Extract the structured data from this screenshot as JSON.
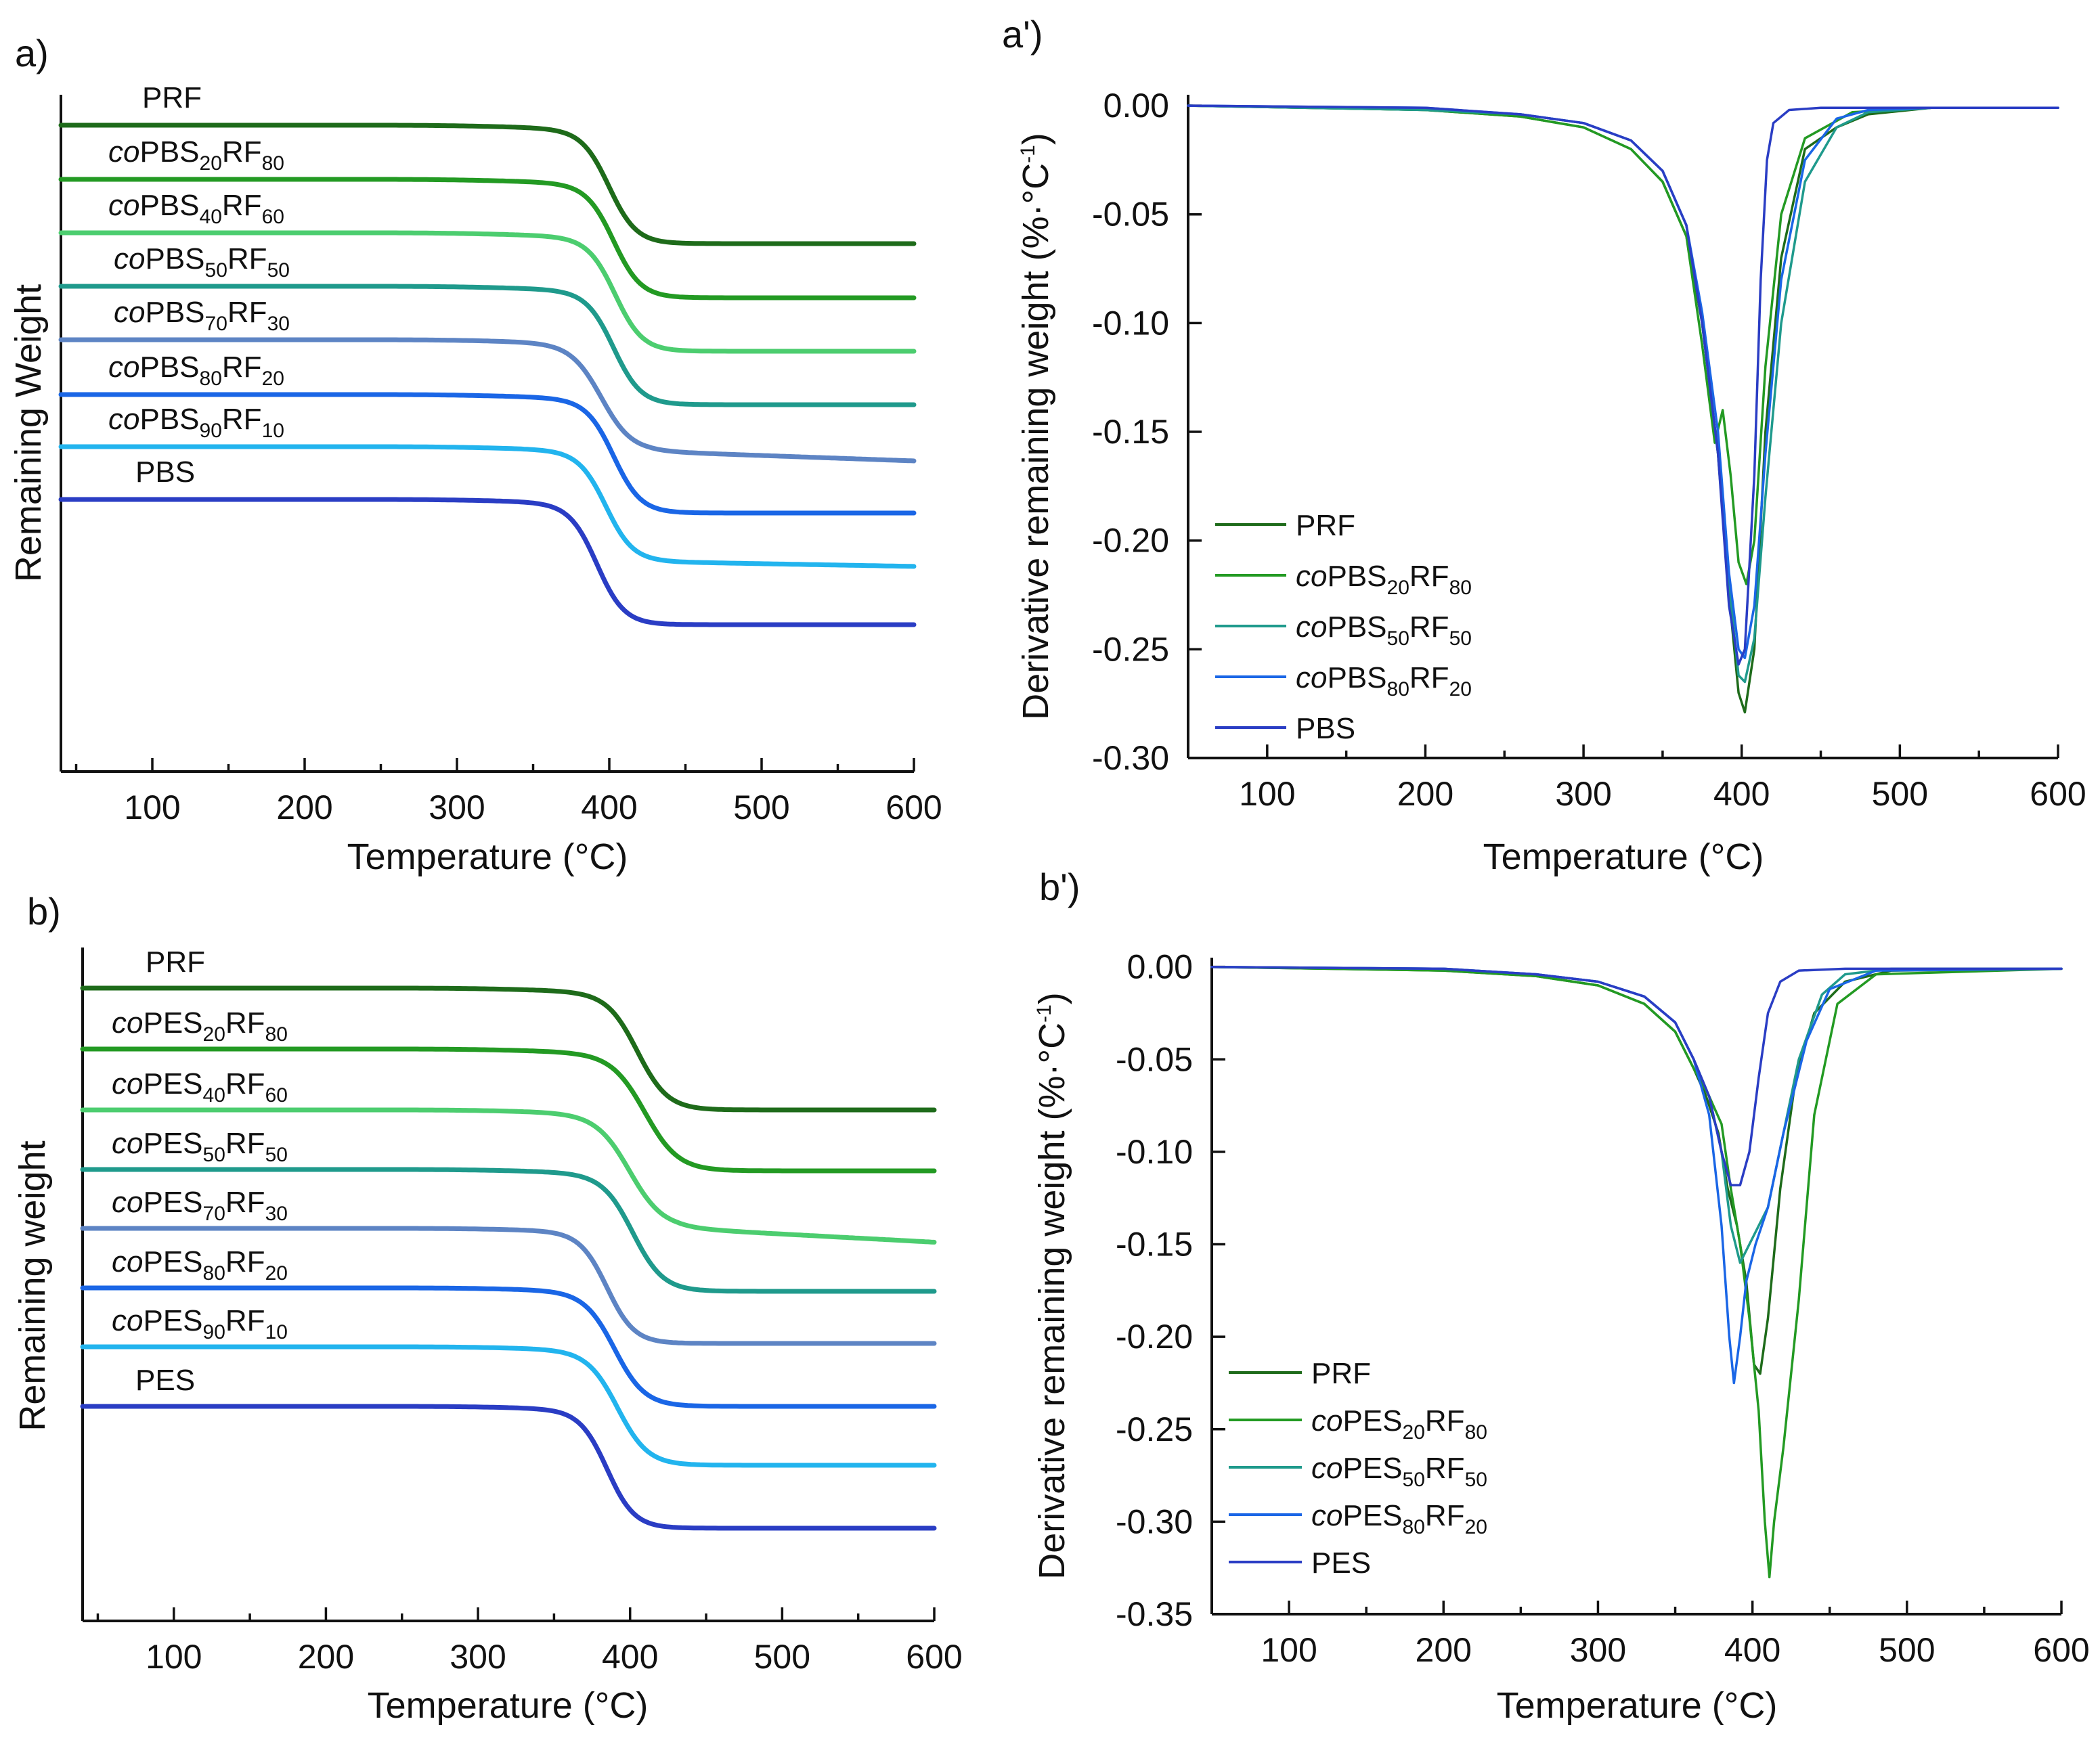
{
  "colors": {
    "PRF": "#1e6b1a",
    "s20": "#239a23",
    "s40": "#4ccd6f",
    "s50": "#1f9a8c",
    "s70": "#5d84c4",
    "s80": "#1a66e6",
    "s90": "#22b4ee",
    "PURE": "#2a3dc4"
  },
  "chart_data": [
    {
      "id": "a",
      "panel_label": "a)",
      "type": "line",
      "title": "",
      "xlabel": "Temperature (°C)",
      "ylabel": "Remaining Weight",
      "xlim": [
        40,
        600
      ],
      "xticks": [
        100,
        200,
        300,
        400,
        500,
        600
      ],
      "yticks_visible": false,
      "series": [
        {
          "key": "PRF",
          "parts": [
            "PRF"
          ],
          "onset": 400,
          "width": 9,
          "drop": 175,
          "plateau": 8,
          "slope": 0
        },
        {
          "key": "s20",
          "parts": [
            "co",
            "PBS",
            "20",
            "RF",
            "80"
          ],
          "onset": 403,
          "width": 9,
          "drop": 175,
          "plateau": 8,
          "slope": 0
        },
        {
          "key": "s40",
          "parts": [
            "co",
            "PBS",
            "40",
            "RF",
            "60"
          ],
          "onset": 404,
          "width": 9,
          "drop": 175,
          "plateau": 8,
          "slope": 0
        },
        {
          "key": "s50",
          "parts": [
            "co",
            "PBS",
            "50",
            "RF",
            "50"
          ],
          "onset": 403,
          "width": 9,
          "drop": 175,
          "plateau": 8,
          "slope": 0
        },
        {
          "key": "s70",
          "parts": [
            "co",
            "PBS",
            "70",
            "RF",
            "30"
          ],
          "onset": 395,
          "width": 10,
          "drop": 165,
          "plateau": 8,
          "slope": 0.08
        },
        {
          "key": "s80",
          "parts": [
            "co",
            "PBS",
            "80",
            "RF",
            "20"
          ],
          "onset": 403,
          "width": 9,
          "drop": 175,
          "plateau": 8,
          "slope": 0
        },
        {
          "key": "s90",
          "parts": [
            "co",
            "PBS",
            "90",
            "RF",
            "10"
          ],
          "onset": 398,
          "width": 9,
          "drop": 170,
          "plateau": 8,
          "slope": 0.04
        },
        {
          "key": "PURE",
          "parts": [
            "PBS"
          ],
          "onset": 392,
          "width": 9,
          "drop": 185,
          "plateau": 8,
          "slope": 0
        }
      ]
    },
    {
      "id": "a2",
      "panel_label": "a')",
      "type": "line",
      "title": "",
      "xlabel": "Temperature (°C)",
      "ylabel": "Derivative remaining weight (%·°C",
      "ylabel_sup": "-1",
      "ylabel_close": ")",
      "xlim": [
        50,
        600
      ],
      "ylim": [
        -0.3,
        0.005
      ],
      "xticks": [
        100,
        200,
        300,
        400,
        500,
        600
      ],
      "yticks": [
        0.0,
        -0.05,
        -0.1,
        -0.15,
        -0.2,
        -0.25,
        -0.3
      ],
      "ytick_labels": [
        "0.00",
        "-0.05",
        "-0.10",
        "-0.15",
        "-0.20",
        "-0.25",
        "-0.30"
      ],
      "legend_position": "lower-left",
      "legend": [
        {
          "key": "PRF",
          "parts": [
            "PRF"
          ],
          "text_color": "#34e034"
        },
        {
          "key": "s20",
          "parts": [
            "co",
            "PBS",
            "20",
            "RF",
            "80"
          ]
        },
        {
          "key": "s50",
          "parts": [
            "co",
            "PBS",
            "50",
            "RF",
            "50"
          ]
        },
        {
          "key": "s80",
          "parts": [
            "co",
            "PBS",
            "80",
            "RF",
            "20"
          ]
        },
        {
          "key": "PURE",
          "parts": [
            "PBS"
          ]
        }
      ],
      "series": [
        {
          "key": "PRF",
          "x": [
            50,
            200,
            260,
            300,
            330,
            350,
            365,
            375,
            385,
            392,
            398,
            402,
            408,
            415,
            425,
            440,
            460,
            480,
            520,
            600
          ],
          "y": [
            0.0,
            -0.002,
            -0.005,
            -0.01,
            -0.02,
            -0.035,
            -0.06,
            -0.1,
            -0.16,
            -0.225,
            -0.27,
            -0.279,
            -0.25,
            -0.15,
            -0.07,
            -0.02,
            -0.01,
            -0.004,
            -0.001,
            -0.001
          ]
        },
        {
          "key": "s20",
          "x": [
            50,
            200,
            260,
            300,
            330,
            350,
            365,
            375,
            383,
            388,
            393,
            398,
            403,
            408,
            415,
            425,
            440,
            470,
            520,
            600
          ],
          "y": [
            0.0,
            -0.002,
            -0.005,
            -0.01,
            -0.02,
            -0.035,
            -0.06,
            -0.11,
            -0.155,
            -0.14,
            -0.17,
            -0.21,
            -0.22,
            -0.2,
            -0.12,
            -0.05,
            -0.015,
            -0.003,
            -0.001,
            -0.001
          ]
        },
        {
          "key": "s50",
          "x": [
            50,
            200,
            260,
            300,
            330,
            350,
            365,
            375,
            385,
            392,
            398,
            402,
            408,
            415,
            425,
            440,
            460,
            480,
            520,
            600
          ],
          "y": [
            0.0,
            -0.002,
            -0.004,
            -0.008,
            -0.016,
            -0.03,
            -0.055,
            -0.1,
            -0.16,
            -0.22,
            -0.262,
            -0.265,
            -0.245,
            -0.18,
            -0.1,
            -0.035,
            -0.01,
            -0.003,
            -0.001,
            -0.001
          ]
        },
        {
          "key": "s80",
          "x": [
            50,
            200,
            260,
            300,
            330,
            350,
            365,
            375,
            385,
            392,
            398,
            402,
            408,
            415,
            425,
            440,
            460,
            480,
            520,
            600
          ],
          "y": [
            0.0,
            -0.001,
            -0.004,
            -0.008,
            -0.016,
            -0.03,
            -0.055,
            -0.095,
            -0.15,
            -0.215,
            -0.25,
            -0.254,
            -0.23,
            -0.16,
            -0.08,
            -0.025,
            -0.006,
            -0.002,
            -0.001,
            -0.001
          ]
        },
        {
          "key": "PURE",
          "x": [
            50,
            200,
            260,
            300,
            330,
            350,
            365,
            375,
            385,
            392,
            398,
            402,
            408,
            412,
            416,
            420,
            430,
            450,
            500,
            600
          ],
          "y": [
            0.0,
            -0.001,
            -0.004,
            -0.008,
            -0.016,
            -0.03,
            -0.055,
            -0.1,
            -0.16,
            -0.23,
            -0.257,
            -0.25,
            -0.17,
            -0.08,
            -0.025,
            -0.008,
            -0.002,
            -0.001,
            -0.001,
            -0.001
          ]
        }
      ]
    },
    {
      "id": "b",
      "panel_label": "b)",
      "type": "line",
      "title": "",
      "xlabel": "Temperature (°C)",
      "ylabel": "Remaining weight",
      "xlim": [
        40,
        600
      ],
      "xticks": [
        100,
        200,
        300,
        400,
        500,
        600
      ],
      "yticks_visible": false,
      "series": [
        {
          "key": "PRF",
          "parts": [
            "PRF"
          ],
          "onset": 405,
          "width": 10,
          "drop": 180,
          "plateau": 8,
          "slope": 0
        },
        {
          "key": "s20",
          "parts": [
            "co",
            "PES",
            "20",
            "RF",
            "80"
          ],
          "onset": 410,
          "width": 11,
          "drop": 180,
          "plateau": 8,
          "slope": 0
        },
        {
          "key": "s40",
          "parts": [
            "co",
            "PES",
            "40",
            "RF",
            "60"
          ],
          "onset": 400,
          "width": 11,
          "drop": 175,
          "plateau": 8,
          "slope": 0.12
        },
        {
          "key": "s50",
          "parts": [
            "co",
            "PES",
            "50",
            "RF",
            "50"
          ],
          "onset": 402,
          "width": 10,
          "drop": 180,
          "plateau": 8,
          "slope": 0
        },
        {
          "key": "s70",
          "parts": [
            "co",
            "PES",
            "70",
            "RF",
            "30"
          ],
          "onset": 385,
          "width": 9,
          "drop": 170,
          "plateau": 8,
          "slope": 0
        },
        {
          "key": "s80",
          "parts": [
            "co",
            "PES",
            "80",
            "RF",
            "20"
          ],
          "onset": 390,
          "width": 10,
          "drop": 175,
          "plateau": 8,
          "slope": 0
        },
        {
          "key": "s90",
          "parts": [
            "co",
            "PES",
            "90",
            "RF",
            "10"
          ],
          "onset": 392,
          "width": 10,
          "drop": 175,
          "plateau": 8,
          "slope": 0
        },
        {
          "key": "PURE",
          "parts": [
            "PES"
          ],
          "onset": 385,
          "width": 9,
          "drop": 180,
          "plateau": 8,
          "slope": 0
        }
      ]
    },
    {
      "id": "b2",
      "panel_label": "b')",
      "type": "line",
      "title": "",
      "xlabel": "Temperature (°C)",
      "ylabel": "Derivative remaining weight (%·°C",
      "ylabel_sup": "-1",
      "ylabel_close": ")",
      "xlim": [
        50,
        600
      ],
      "ylim": [
        -0.35,
        0.005
      ],
      "xticks": [
        100,
        200,
        300,
        400,
        500,
        600
      ],
      "yticks": [
        0.0,
        -0.05,
        -0.1,
        -0.15,
        -0.2,
        -0.25,
        -0.3,
        -0.35
      ],
      "ytick_labels": [
        "0.00",
        "-0.05",
        "-0.10",
        "-0.15",
        "-0.20",
        "-0.25",
        "-0.30",
        "-0.35"
      ],
      "legend_position": "lower-left",
      "legend": [
        {
          "key": "PRF",
          "parts": [
            "PRF"
          ]
        },
        {
          "key": "s20",
          "parts": [
            "co",
            "PES",
            "20",
            "RF",
            "80"
          ]
        },
        {
          "key": "s50",
          "parts": [
            "co",
            "PES",
            "50",
            "RF",
            "50"
          ]
        },
        {
          "key": "s80",
          "parts": [
            "co",
            "PES",
            "80",
            "RF",
            "20"
          ]
        },
        {
          "key": "PURE",
          "parts": [
            "PES"
          ]
        }
      ],
      "series": [
        {
          "key": "PRF",
          "x": [
            50,
            200,
            260,
            300,
            330,
            350,
            362,
            370,
            378,
            384,
            390,
            396,
            401,
            405,
            410,
            418,
            428,
            440,
            460,
            490,
            600
          ],
          "y": [
            0.0,
            -0.002,
            -0.005,
            -0.01,
            -0.02,
            -0.035,
            -0.055,
            -0.07,
            -0.09,
            -0.12,
            -0.14,
            -0.17,
            -0.215,
            -0.22,
            -0.19,
            -0.12,
            -0.06,
            -0.025,
            -0.008,
            -0.002,
            -0.001
          ]
        },
        {
          "key": "s20",
          "x": [
            50,
            200,
            260,
            300,
            330,
            350,
            362,
            372,
            380,
            386,
            392,
            398,
            404,
            408,
            411,
            414,
            420,
            430,
            440,
            455,
            480,
            600
          ],
          "y": [
            0.0,
            -0.002,
            -0.005,
            -0.01,
            -0.02,
            -0.035,
            -0.055,
            -0.07,
            -0.085,
            -0.12,
            -0.15,
            -0.19,
            -0.24,
            -0.3,
            -0.33,
            -0.3,
            -0.26,
            -0.18,
            -0.08,
            -0.02,
            -0.004,
            -0.001
          ]
        },
        {
          "key": "s50",
          "x": [
            50,
            200,
            260,
            300,
            330,
            350,
            362,
            372,
            380,
            386,
            392,
            398,
            404,
            410,
            420,
            430,
            445,
            460,
            490,
            600
          ],
          "y": [
            0.0,
            -0.001,
            -0.004,
            -0.008,
            -0.016,
            -0.03,
            -0.05,
            -0.07,
            -0.1,
            -0.14,
            -0.16,
            -0.15,
            -0.14,
            -0.13,
            -0.09,
            -0.05,
            -0.015,
            -0.004,
            -0.001,
            -0.001
          ]
        },
        {
          "key": "s80",
          "x": [
            50,
            200,
            260,
            300,
            330,
            350,
            362,
            372,
            380,
            385,
            388,
            392,
            396,
            402,
            410,
            420,
            435,
            450,
            480,
            600
          ],
          "y": [
            0.0,
            -0.001,
            -0.004,
            -0.008,
            -0.016,
            -0.03,
            -0.05,
            -0.08,
            -0.14,
            -0.2,
            -0.225,
            -0.2,
            -0.17,
            -0.15,
            -0.13,
            -0.09,
            -0.04,
            -0.012,
            -0.002,
            -0.001
          ]
        },
        {
          "key": "PURE",
          "x": [
            50,
            200,
            260,
            300,
            330,
            350,
            362,
            372,
            380,
            386,
            392,
            398,
            404,
            410,
            418,
            430,
            460,
            600
          ],
          "y": [
            0.0,
            -0.001,
            -0.004,
            -0.008,
            -0.016,
            -0.03,
            -0.05,
            -0.07,
            -0.1,
            -0.118,
            -0.118,
            -0.1,
            -0.06,
            -0.025,
            -0.008,
            -0.002,
            -0.001,
            -0.001
          ]
        }
      ]
    }
  ]
}
